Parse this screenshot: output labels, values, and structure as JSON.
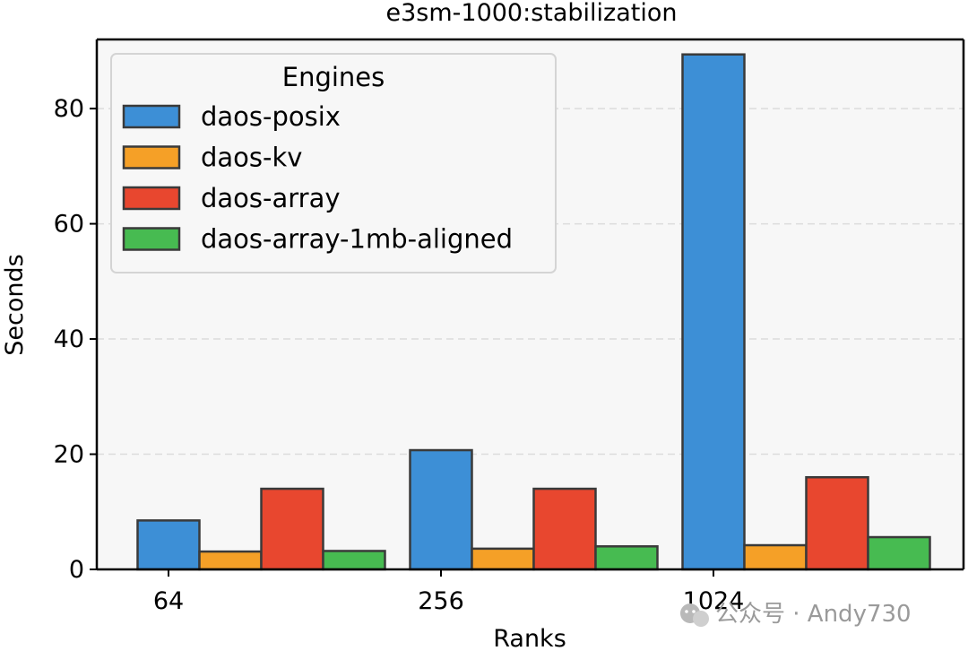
{
  "chart_data": {
    "type": "bar",
    "title": "e3sm-1000:stabilization",
    "xlabel": "Ranks",
    "ylabel": "Seconds",
    "categories": [
      "64",
      "256",
      "1024"
    ],
    "ylim": [
      0,
      92
    ],
    "yticks": [
      0,
      20,
      40,
      60,
      80
    ],
    "grid": "horizontal dashed",
    "legend": {
      "title": "Engines",
      "placement": "top-left"
    },
    "series": [
      {
        "name": "daos-posix",
        "color": "#3d8fd6",
        "values": [
          8.5,
          20.7,
          89.4
        ]
      },
      {
        "name": "daos-kv",
        "color": "#f5a027",
        "values": [
          3.1,
          3.6,
          4.2
        ]
      },
      {
        "name": "daos-array",
        "color": "#e8472f",
        "values": [
          14.0,
          14.0,
          16.0
        ]
      },
      {
        "name": "daos-array-1mb-aligned",
        "color": "#47bb51",
        "values": [
          3.2,
          4.0,
          5.6
        ]
      }
    ]
  },
  "watermark": {
    "icon": "wechat-icon",
    "text": "公众号 · Andy730"
  }
}
